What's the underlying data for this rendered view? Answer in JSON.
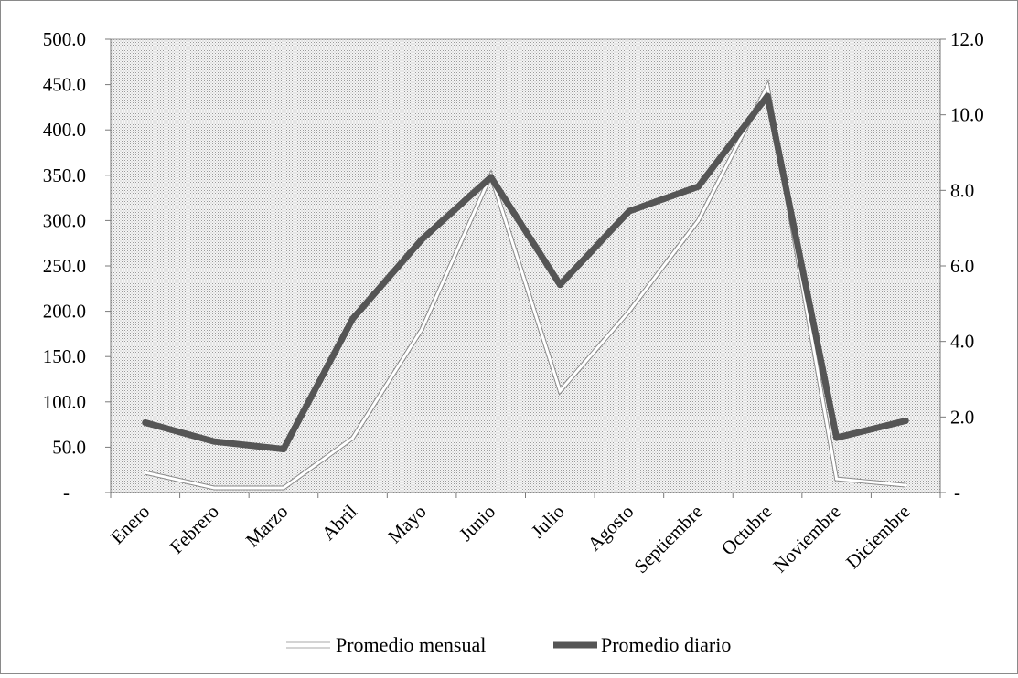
{
  "chart_data": {
    "type": "line",
    "title": "",
    "xlabel": "",
    "ylabel": "",
    "y2label": "",
    "categories": [
      "Enero",
      "Febrero",
      "Marzo",
      "Abril",
      "Mayo",
      "Junio",
      "Julio",
      "Agosto",
      "Septiembre",
      "Octubre",
      "Noviembre",
      "Diciembre"
    ],
    "series": [
      {
        "name": "Promedio mensual",
        "axis": "left",
        "color": "#ffffff",
        "outline": "#555555",
        "values": [
          22,
          5,
          5,
          60,
          180,
          350,
          112,
          200,
          300,
          448,
          15,
          8
        ]
      },
      {
        "name": "Promedio diario",
        "axis": "right",
        "color": "#555555",
        "values": [
          1.85,
          1.35,
          1.15,
          4.6,
          6.7,
          8.35,
          5.5,
          7.45,
          8.1,
          10.5,
          1.45,
          1.9
        ]
      }
    ],
    "ylim": [
      0,
      500
    ],
    "y2lim": [
      0,
      12
    ],
    "yticks": [
      {
        "value": 0,
        "label": "-"
      },
      {
        "value": 50,
        "label": "50.0"
      },
      {
        "value": 100,
        "label": "100.0"
      },
      {
        "value": 150,
        "label": "150.0"
      },
      {
        "value": 200,
        "label": "200.0"
      },
      {
        "value": 250,
        "label": "250.0"
      },
      {
        "value": 300,
        "label": "300.0"
      },
      {
        "value": 350,
        "label": "350.0"
      },
      {
        "value": 400,
        "label": "400.0"
      },
      {
        "value": 450,
        "label": "450.0"
      },
      {
        "value": 500,
        "label": "500.0"
      }
    ],
    "y2ticks": [
      {
        "value": 0,
        "label": "-"
      },
      {
        "value": 2,
        "label": "2.0"
      },
      {
        "value": 4,
        "label": "4.0"
      },
      {
        "value": 6,
        "label": "6.0"
      },
      {
        "value": 8,
        "label": "8.0"
      },
      {
        "value": 10,
        "label": "10.0"
      },
      {
        "value": 12,
        "label": "12.0"
      }
    ],
    "grid": false,
    "plot_background": "dotted-gray",
    "legend": {
      "position": "bottom",
      "entries": [
        "Promedio mensual",
        "Promedio diario"
      ]
    }
  }
}
